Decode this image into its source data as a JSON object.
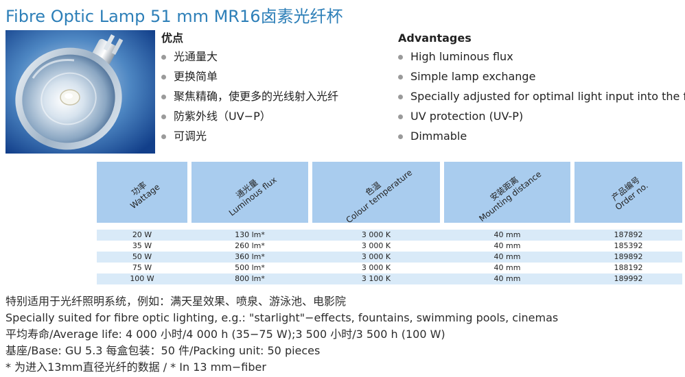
{
  "title": "Fibre Optic Lamp 51 mm   MR16卤素光纤杯",
  "advantages_cn": {
    "heading": "优点",
    "items": [
      "光通量大",
      "更换简单",
      "聚焦精确，使更多的光线射入光纤",
      "防紫外线（UV−P）",
      "可调光"
    ]
  },
  "advantages_en": {
    "heading": "Advantages",
    "items": [
      "High luminous flux",
      "Simple lamp exchange",
      "Specially adjusted for optimal light input into the fibre",
      "UV protection (UV-P)",
      "Dimmable"
    ]
  },
  "table": {
    "headers": [
      {
        "cn": "功率",
        "en": "Wattage"
      },
      {
        "cn": "通光量",
        "en": "Luminous flux"
      },
      {
        "cn": "色温",
        "en": "Colour temperature"
      },
      {
        "cn": "安装距离",
        "en": "Mounting distance"
      },
      {
        "cn": "产品编号",
        "en": "Order no."
      }
    ],
    "rows": [
      [
        "20 W",
        "130 lm*",
        "3 000 K",
        "40 mm",
        "187892"
      ],
      [
        "35 W",
        "260 lm*",
        "3 000 K",
        "40 mm",
        "185392"
      ],
      [
        "50 W",
        "360 lm*",
        "3 000 K",
        "40 mm",
        "189892"
      ],
      [
        "75 W",
        "500 lm*",
        "3 000 K",
        "40 mm",
        "188192"
      ],
      [
        "100 W",
        "800 lm*",
        "3 100 K",
        "40 mm",
        "189992"
      ]
    ]
  },
  "notes": [
    "特别适用于光纤照明系统，例如：满天星效果、喷泉、游泳池、电影院",
    "Specially suited for fibre optic lighting, e.g.: \"starlight\"−effects, fountains, swimming pools, cinemas",
    "平均寿命/Average life: 4 000 小时/4 000 h (35−75 W);3 500 小时/3 500 h (100 W)",
    "基座/Base: GU 5.3    每盒包装：50 件/Packing unit: 50 pieces",
    " * 为进入13mm直径光纤的数据 / * In 13 mm−fiber"
  ],
  "colors": {
    "title": "#2d7fb8",
    "header_bg": "#a9ccee",
    "row_shade": "#d9eaf8",
    "bullet": "#9a9a9a"
  },
  "image": {
    "icon": "mr16-lamp-photo"
  }
}
